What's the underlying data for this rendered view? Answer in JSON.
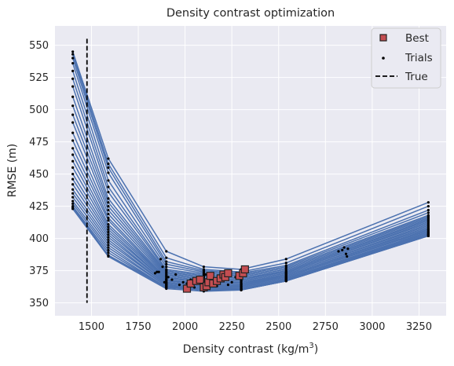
{
  "chart_data": {
    "type": "line",
    "title": "Density contrast optimization",
    "xlabel": "Density contrast (kg/m",
    "xlabel_sup": "3",
    "xlabel_suffix": ")",
    "ylabel": "RMSE (m)",
    "xlim": [
      1305,
      3395
    ],
    "ylim": [
      340,
      565
    ],
    "xticks": [
      1500,
      1750,
      2000,
      2250,
      2500,
      2750,
      3000,
      3250
    ],
    "yticks": [
      350,
      375,
      400,
      425,
      450,
      475,
      500,
      525,
      550
    ],
    "grid": true,
    "background": "#eaeaf2",
    "legend_position": "top-right",
    "legend": [
      {
        "label": "Best",
        "marker": "square",
        "color": "#c44e52"
      },
      {
        "label": "Trials",
        "marker": "dot",
        "color": "#000000"
      },
      {
        "label": "True",
        "marker": "dashed-line",
        "color": "#000000"
      }
    ],
    "true_value": 1476,
    "trial_x": [
      1400,
      1590,
      1900,
      2100,
      2300,
      2540,
      3300
    ],
    "trial_curves": [
      [
        545,
        462,
        390,
        378,
        376,
        384,
        428
      ],
      [
        543,
        458,
        385,
        376,
        374,
        381,
        425
      ],
      [
        540,
        455,
        382,
        375,
        373,
        379,
        422
      ],
      [
        536,
        451,
        380,
        374,
        372,
        378,
        420
      ],
      [
        530,
        445,
        378,
        373,
        371,
        377,
        418
      ],
      [
        524,
        440,
        376,
        372,
        370,
        376,
        417
      ],
      [
        518,
        436,
        375,
        371,
        369,
        375,
        416
      ],
      [
        510,
        431,
        374,
        370,
        369,
        374,
        415
      ],
      [
        503,
        428,
        373,
        369,
        368,
        374,
        414
      ],
      [
        496,
        425,
        372,
        368,
        367,
        373,
        413
      ],
      [
        490,
        422,
        371,
        367,
        367,
        373,
        412
      ],
      [
        482,
        419,
        370,
        366,
        366,
        372,
        411
      ],
      [
        476,
        416,
        369,
        366,
        365,
        372,
        410
      ],
      [
        470,
        414,
        368,
        365,
        365,
        371,
        409
      ],
      [
        465,
        411,
        368,
        364,
        364,
        371,
        408
      ],
      [
        460,
        409,
        367,
        364,
        364,
        370,
        407
      ],
      [
        455,
        407,
        366,
        363,
        363,
        370,
        407
      ],
      [
        450,
        405,
        366,
        363,
        363,
        370,
        406
      ],
      [
        446,
        403,
        365,
        362,
        362,
        369,
        405
      ],
      [
        442,
        401,
        365,
        362,
        362,
        369,
        405
      ],
      [
        438,
        399,
        364,
        361,
        362,
        369,
        404
      ],
      [
        435,
        397,
        364,
        361,
        361,
        368,
        404
      ],
      [
        432,
        395,
        363,
        361,
        361,
        368,
        403
      ],
      [
        429,
        393,
        363,
        360,
        361,
        368,
        403
      ],
      [
        427,
        391,
        362,
        360,
        360,
        367,
        403
      ],
      [
        425,
        389,
        362,
        360,
        360,
        367,
        402
      ],
      [
        424,
        387,
        362,
        360,
        360,
        367,
        402
      ],
      [
        423,
        386,
        361,
        359,
        360,
        367,
        402
      ]
    ],
    "trial_points": [
      {
        "x": 1870,
        "y": 384
      },
      {
        "x": 1880,
        "y": 378
      },
      {
        "x": 1860,
        "y": 374
      },
      {
        "x": 1850,
        "y": 374
      },
      {
        "x": 1840,
        "y": 373
      },
      {
        "x": 1890,
        "y": 366
      },
      {
        "x": 1910,
        "y": 370
      },
      {
        "x": 1930,
        "y": 368
      },
      {
        "x": 1950,
        "y": 372
      },
      {
        "x": 1970,
        "y": 364
      },
      {
        "x": 1990,
        "y": 366
      },
      {
        "x": 2010,
        "y": 365
      },
      {
        "x": 2030,
        "y": 368
      },
      {
        "x": 2050,
        "y": 362
      },
      {
        "x": 2070,
        "y": 365
      },
      {
        "x": 2090,
        "y": 367
      },
      {
        "x": 2110,
        "y": 372
      },
      {
        "x": 2130,
        "y": 365
      },
      {
        "x": 2150,
        "y": 368
      },
      {
        "x": 2170,
        "y": 363
      },
      {
        "x": 2190,
        "y": 367
      },
      {
        "x": 2210,
        "y": 370
      },
      {
        "x": 2230,
        "y": 364
      },
      {
        "x": 2250,
        "y": 366
      },
      {
        "x": 2270,
        "y": 370
      },
      {
        "x": 2290,
        "y": 369
      },
      {
        "x": 2310,
        "y": 373
      },
      {
        "x": 2820,
        "y": 390
      },
      {
        "x": 2840,
        "y": 391
      },
      {
        "x": 2850,
        "y": 393
      },
      {
        "x": 2860,
        "y": 388
      },
      {
        "x": 2865,
        "y": 386
      },
      {
        "x": 2870,
        "y": 392
      }
    ],
    "best_points": [
      {
        "x": 2010,
        "y": 361
      },
      {
        "x": 2030,
        "y": 365
      },
      {
        "x": 2060,
        "y": 367
      },
      {
        "x": 2080,
        "y": 368
      },
      {
        "x": 2100,
        "y": 362
      },
      {
        "x": 2115,
        "y": 363
      },
      {
        "x": 2125,
        "y": 366
      },
      {
        "x": 2135,
        "y": 371
      },
      {
        "x": 2150,
        "y": 365
      },
      {
        "x": 2170,
        "y": 367
      },
      {
        "x": 2190,
        "y": 369
      },
      {
        "x": 2205,
        "y": 372
      },
      {
        "x": 2215,
        "y": 370
      },
      {
        "x": 2230,
        "y": 373
      },
      {
        "x": 2290,
        "y": 371
      },
      {
        "x": 2310,
        "y": 373
      },
      {
        "x": 2320,
        "y": 376
      }
    ]
  }
}
